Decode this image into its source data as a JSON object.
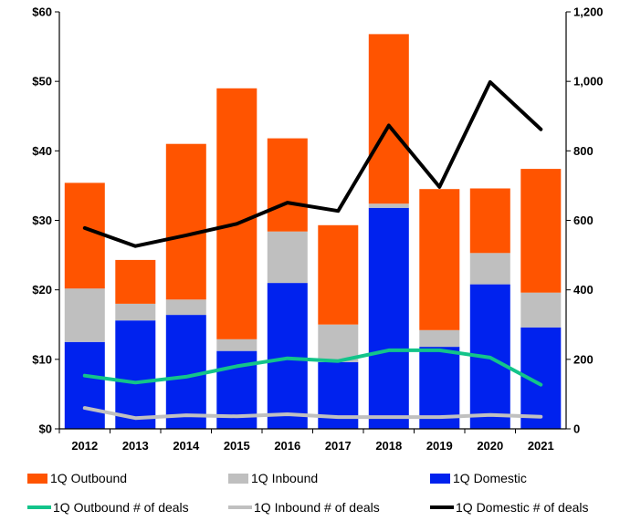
{
  "chart_data": {
    "type": "bar",
    "categories": [
      "2012",
      "2013",
      "2014",
      "2015",
      "2016",
      "2017",
      "2018",
      "2019",
      "2020",
      "2021"
    ],
    "stacked_series": [
      {
        "name": "1Q Domestic",
        "color": "#0022ee",
        "values": [
          12.5,
          15.6,
          16.4,
          11.2,
          21.0,
          9.6,
          31.8,
          11.8,
          20.8,
          14.6
        ]
      },
      {
        "name": "1Q Inbound",
        "color": "#bfbfbf",
        "values": [
          7.7,
          2.4,
          2.2,
          1.7,
          7.4,
          5.4,
          0.6,
          2.4,
          4.5,
          5.0
        ]
      },
      {
        "name": "1Q Outbound",
        "color": "#ff5400",
        "values": [
          15.2,
          6.3,
          22.4,
          36.1,
          13.4,
          14.3,
          24.4,
          20.3,
          9.3,
          17.8
        ]
      }
    ],
    "line_series": [
      {
        "name": "1Q  Outbound # of deals",
        "color": "#13c48a",
        "values": [
          153,
          133,
          150,
          180,
          203,
          195,
          226,
          226,
          205,
          127
        ]
      },
      {
        "name": "1Q Inbound # of deals",
        "color": "#c0c0c0",
        "values": [
          60,
          31,
          39,
          36,
          42,
          34,
          34,
          34,
          40,
          35
        ]
      },
      {
        "name": "1Q Domestic # of deals",
        "color": "#000000",
        "values": [
          578,
          526,
          557,
          590,
          651,
          627,
          873,
          696,
          998,
          862
        ]
      }
    ],
    "y_left": {
      "min": 0,
      "max": 60,
      "ticks": [
        "$0",
        "$10",
        "$20",
        "$30",
        "$40",
        "$50",
        "$60"
      ]
    },
    "y_right": {
      "min": 0,
      "max": 1200,
      "ticks": [
        "0",
        "200",
        "400",
        "600",
        "800",
        "1,000",
        "1,200"
      ]
    },
    "grid": false
  },
  "legend": {
    "items": [
      {
        "label": "1Q Outbound",
        "color": "#ff5400",
        "kind": "box"
      },
      {
        "label": "1Q Inbound",
        "color": "#bfbfbf",
        "kind": "box"
      },
      {
        "label": "1Q Domestic",
        "color": "#0022ee",
        "kind": "box"
      },
      {
        "label": "1Q  Outbound # of deals",
        "color": "#13c48a",
        "kind": "line"
      },
      {
        "label": "1Q Inbound # of deals",
        "color": "#c0c0c0",
        "kind": "line"
      },
      {
        "label": "1Q Domestic # of deals",
        "color": "#000000",
        "kind": "line"
      }
    ]
  }
}
